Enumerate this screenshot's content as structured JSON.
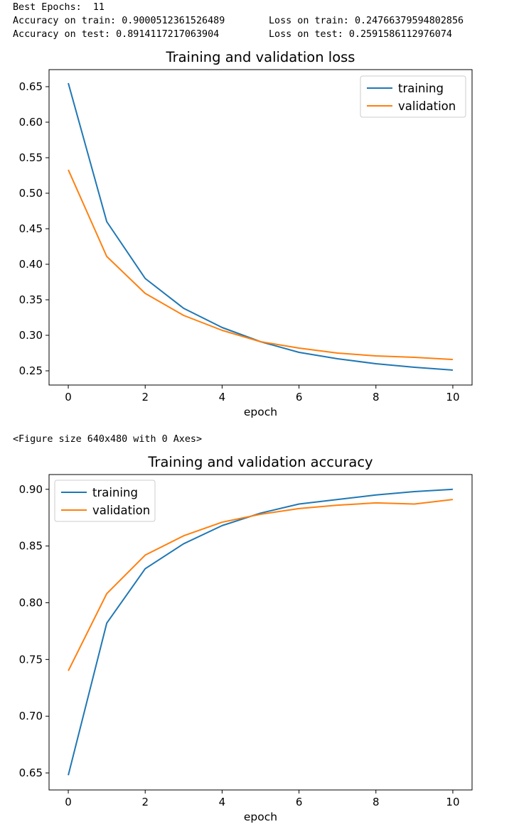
{
  "output": {
    "best_epochs_label": "Best Epochs:",
    "best_epochs_value": "11",
    "train_accuracy_label": "Accuracy on train:",
    "train_accuracy_value": "0.9000512361526489",
    "train_loss_label": "Loss on train:",
    "train_loss_value": "0.24766379594802856",
    "test_accuracy_label": "Accuracy on test:",
    "test_accuracy_value": "0.8914117217063904",
    "test_loss_label": "Loss on test:",
    "test_loss_value": "0.2591586112976074",
    "figure_message": "<Figure size 640x480 with 0 Axes>"
  },
  "colors": {
    "training": "#1f77b4",
    "validation": "#ff7f0e"
  },
  "chart_data": [
    {
      "type": "line",
      "title": "Training and validation loss",
      "xlabel": "epoch",
      "ylabel": "",
      "x": [
        0,
        1,
        2,
        3,
        4,
        5,
        6,
        7,
        8,
        9,
        10
      ],
      "xticks": [
        0,
        2,
        4,
        6,
        8,
        10
      ],
      "yticks": [
        0.25,
        0.3,
        0.35,
        0.4,
        0.45,
        0.5,
        0.55,
        0.6,
        0.65
      ],
      "ytick_labels": [
        "0.25",
        "0.30",
        "0.35",
        "0.40",
        "0.45",
        "0.50",
        "0.55",
        "0.60",
        "0.65"
      ],
      "xlim": [
        -0.5,
        10.5
      ],
      "ylim": [
        0.23,
        0.674
      ],
      "legend": "top-right",
      "grid": false,
      "series": [
        {
          "name": "training",
          "values": [
            0.655,
            0.46,
            0.38,
            0.338,
            0.311,
            0.291,
            0.276,
            0.267,
            0.26,
            0.255,
            0.251
          ]
        },
        {
          "name": "validation",
          "values": [
            0.533,
            0.411,
            0.359,
            0.328,
            0.307,
            0.291,
            0.282,
            0.275,
            0.271,
            0.269,
            0.266
          ]
        }
      ]
    },
    {
      "type": "line",
      "title": "Training and validation accuracy",
      "xlabel": "epoch",
      "ylabel": "",
      "x": [
        0,
        1,
        2,
        3,
        4,
        5,
        6,
        7,
        8,
        9,
        10
      ],
      "xticks": [
        0,
        2,
        4,
        6,
        8,
        10
      ],
      "yticks": [
        0.65,
        0.7,
        0.75,
        0.8,
        0.85,
        0.9
      ],
      "ytick_labels": [
        "0.65",
        "0.70",
        "0.75",
        "0.80",
        "0.85",
        "0.90"
      ],
      "xlim": [
        -0.5,
        10.5
      ],
      "ylim": [
        0.635,
        0.913
      ],
      "legend": "top-left",
      "grid": false,
      "series": [
        {
          "name": "training",
          "values": [
            0.648,
            0.782,
            0.83,
            0.852,
            0.868,
            0.879,
            0.887,
            0.891,
            0.895,
            0.898,
            0.9
          ]
        },
        {
          "name": "validation",
          "values": [
            0.74,
            0.808,
            0.842,
            0.859,
            0.871,
            0.878,
            0.883,
            0.886,
            0.888,
            0.887,
            0.891
          ]
        }
      ]
    }
  ]
}
